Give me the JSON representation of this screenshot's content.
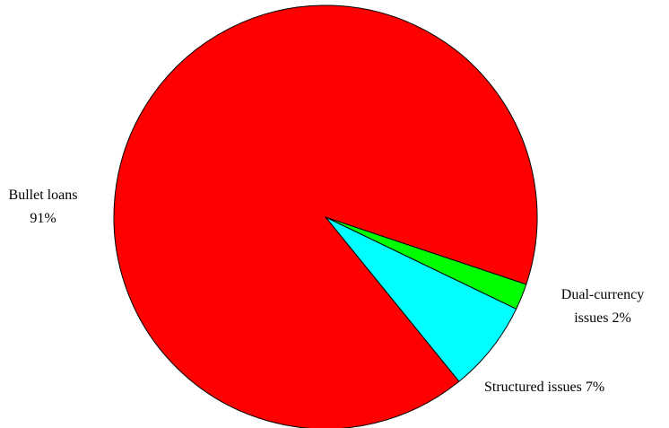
{
  "chart_data": {
    "type": "pie",
    "categories": [
      "Dual-currency issues",
      "Structured issues",
      "Bullet loans"
    ],
    "values": [
      2,
      7,
      91
    ],
    "value_labels": [
      "2%",
      "7%",
      "91%"
    ],
    "colors": [
      "#00ff00",
      "#00ffff",
      "#ff0000"
    ]
  }
}
